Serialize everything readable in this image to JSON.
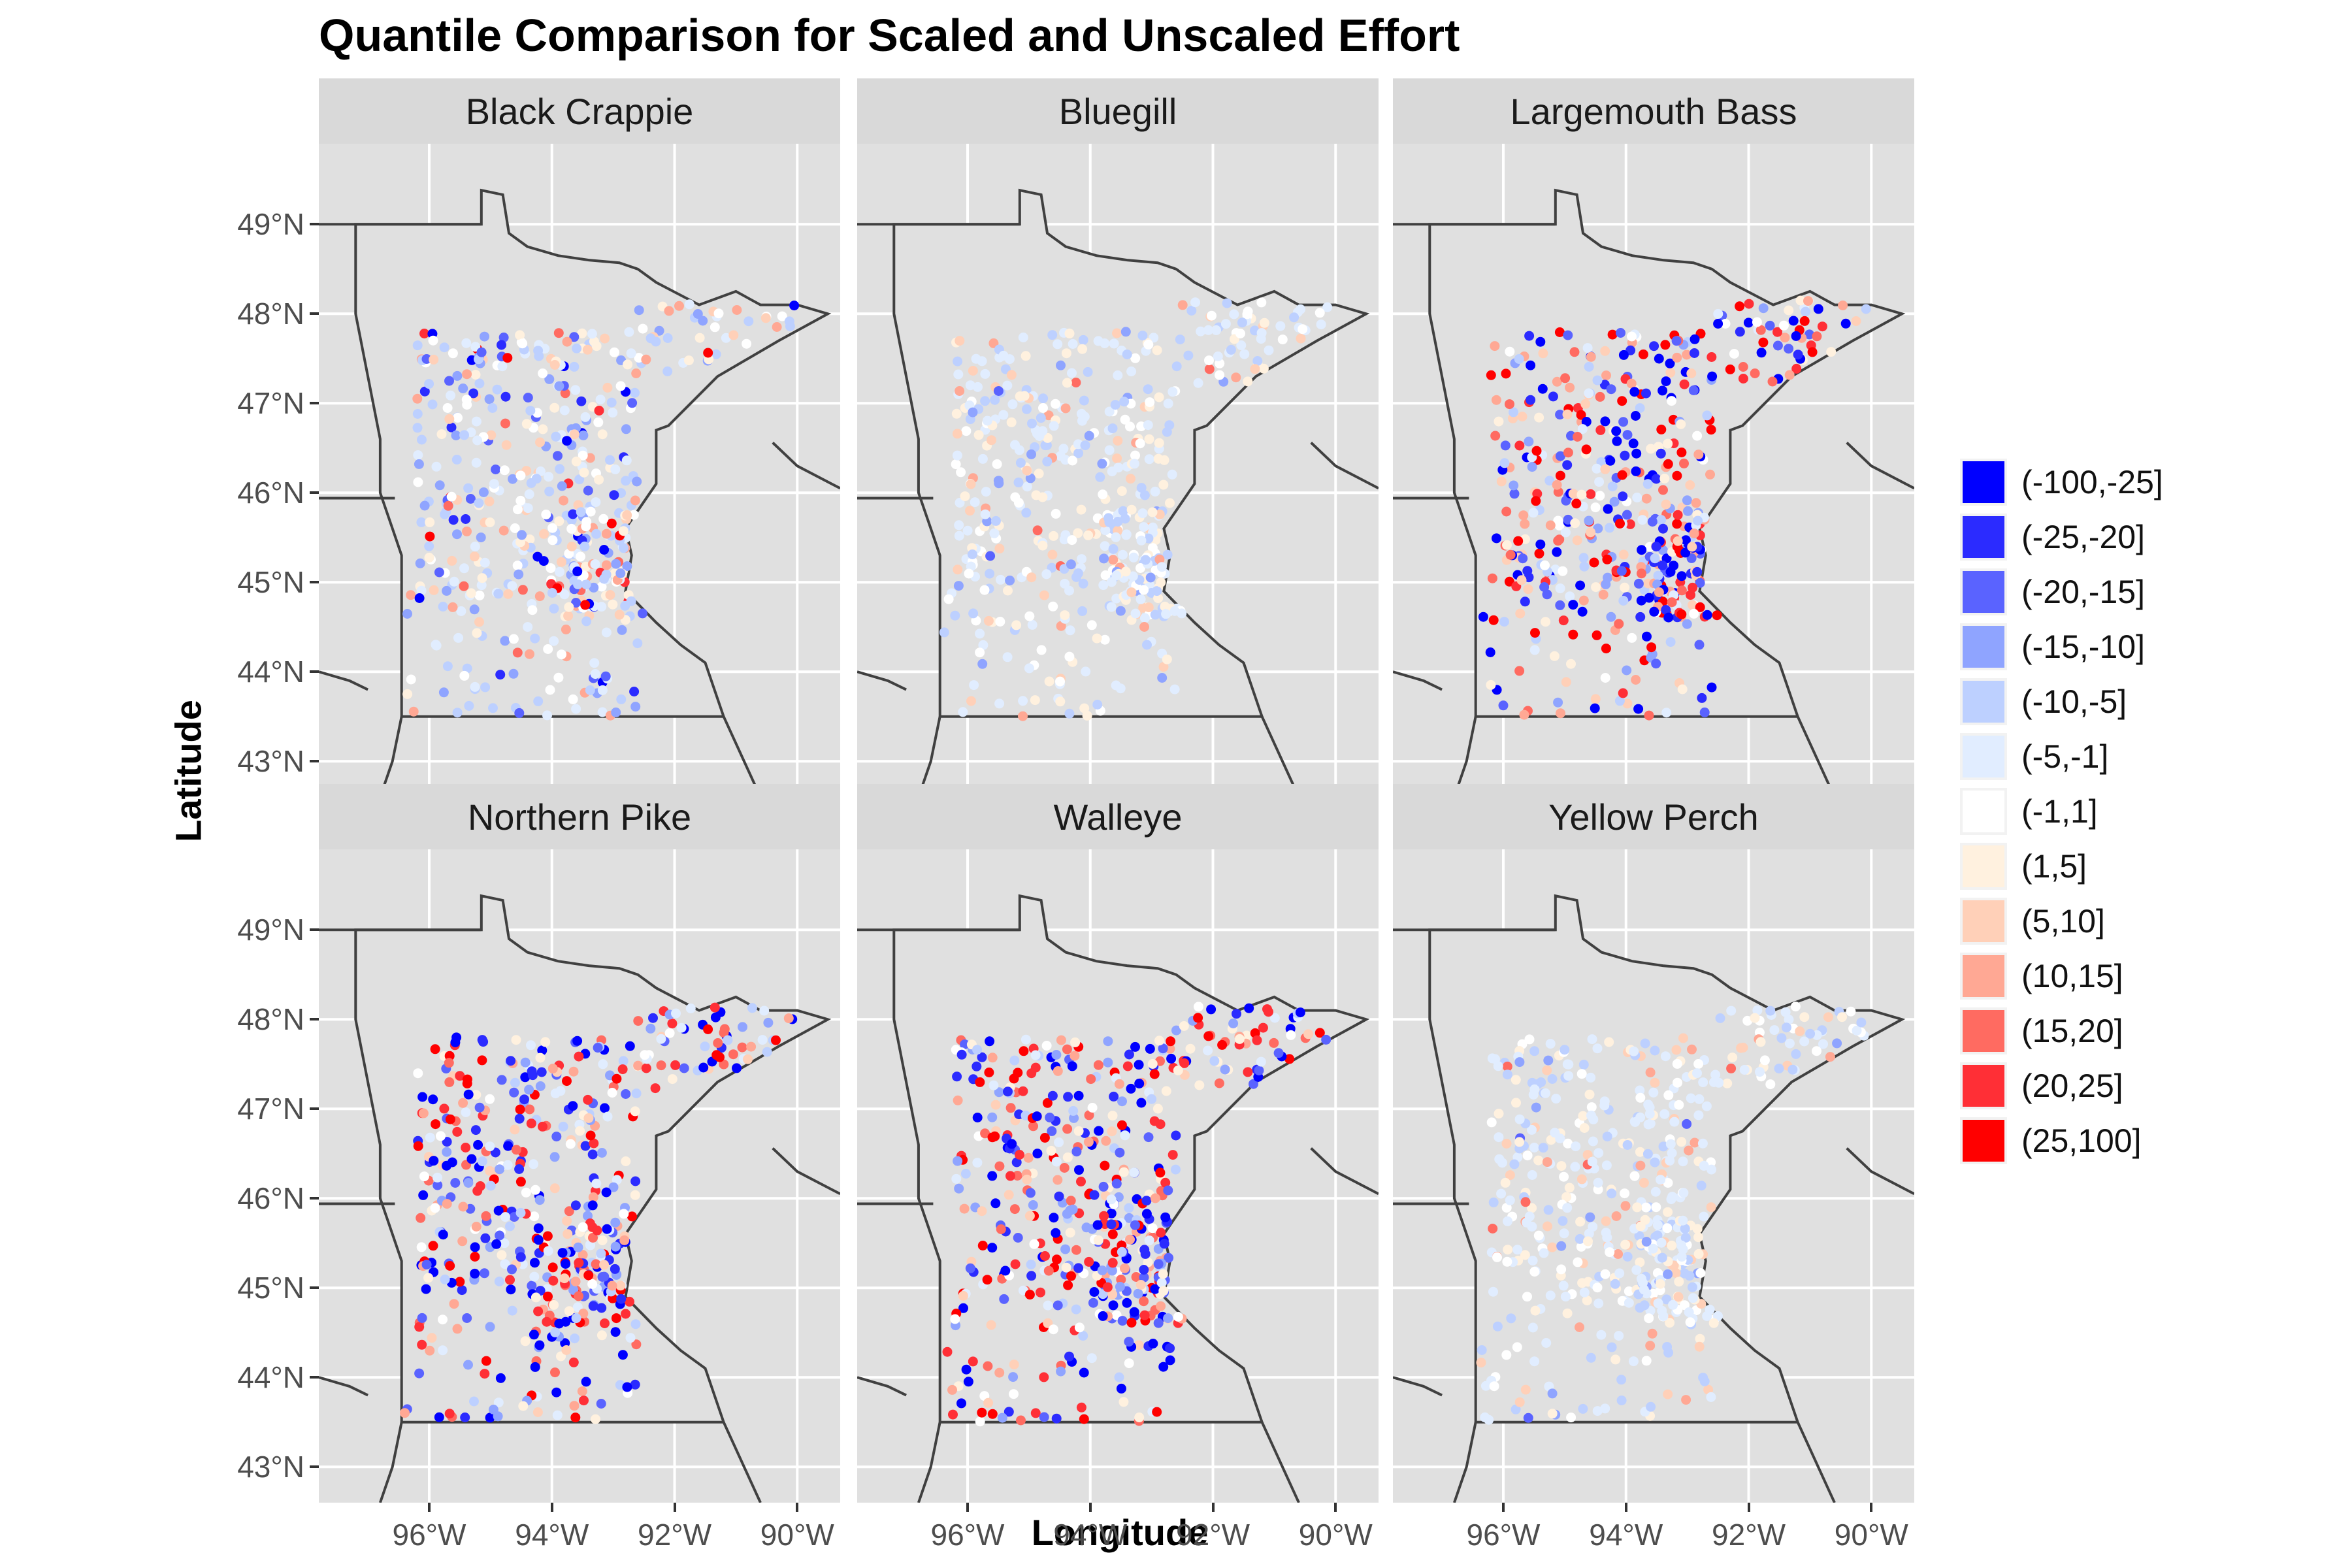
{
  "title": "Quantile Comparison for Scaled and Unscaled Effort",
  "xlabel": "Longitude",
  "ylabel": "Latitude",
  "y_ticks": [
    "49°N",
    "48°N",
    "47°N",
    "46°N",
    "45°N",
    "44°N",
    "43°N"
  ],
  "x_ticks": [
    "96°W",
    "94°W",
    "92°W",
    "90°W"
  ],
  "legend": [
    {
      "label": "(-100,-25]",
      "color": "#0000ff"
    },
    {
      "label": "(-25,-20]",
      "color": "#2b2bff"
    },
    {
      "label": "(-20,-15]",
      "color": "#5a63ff"
    },
    {
      "label": "(-15,-10]",
      "color": "#8fa4ff"
    },
    {
      "label": "(-10,-5]",
      "color": "#bdd0ff"
    },
    {
      "label": "(-5,-1]",
      "color": "#e1edff"
    },
    {
      "label": "(-1,1]",
      "color": "#ffffff"
    },
    {
      "label": "(1,5]",
      "color": "#fff1df"
    },
    {
      "label": "(5,10]",
      "color": "#ffd0b8"
    },
    {
      "label": "(10,15]",
      "color": "#ffa894"
    },
    {
      "label": "(15,20]",
      "color": "#ff6b61"
    },
    {
      "label": "(20,25]",
      "color": "#ff2f36"
    },
    {
      "label": "(25,100]",
      "color": "#ff0000"
    }
  ],
  "panels": [
    {
      "title": "Black Crappie",
      "palette": "light_mixed"
    },
    {
      "title": "Bluegill",
      "palette": "light_blue"
    },
    {
      "title": "Largemouth Bass",
      "palette": "strong_mixed"
    },
    {
      "title": "Northern Pike",
      "palette": "strong_mixed"
    },
    {
      "title": "Walleye",
      "palette": "strong_mixed"
    },
    {
      "title": "Yellow Perch",
      "palette": "light_blue"
    }
  ],
  "map": {
    "xlim": [
      -97.8,
      -89.3
    ],
    "ylim": [
      42.6,
      49.9
    ],
    "background": "#e0e0e0",
    "grid_color": "#ffffff",
    "border_color": "#404040"
  }
}
